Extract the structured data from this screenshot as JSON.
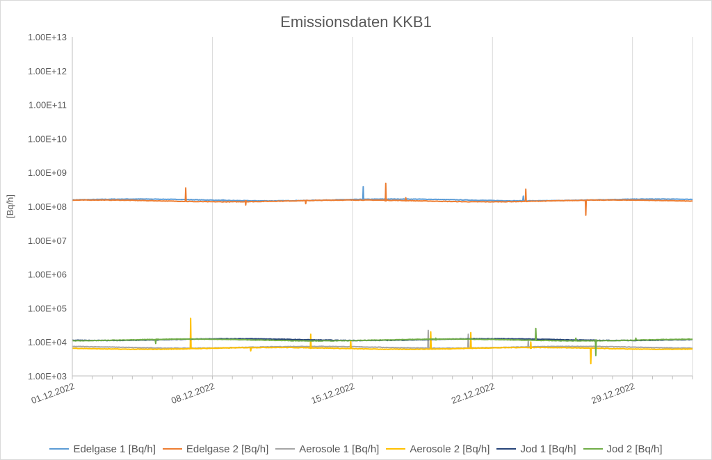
{
  "chart_data": {
    "type": "line",
    "title": "Emissionsdaten KKB1",
    "ylabel": "[Bq/h]",
    "xlabel": "",
    "y_scale": "log",
    "ylim": [
      1000,
      10000000000000
    ],
    "y_ticks": [
      "1.00E+03",
      "1.00E+04",
      "1.00E+05",
      "1.00E+06",
      "1.00E+07",
      "1.00E+08",
      "1.00E+09",
      "1.00E+10",
      "1.00E+11",
      "1.00E+12",
      "1.00E+13"
    ],
    "y_tick_values": [
      1000.0,
      10000.0,
      100000.0,
      1000000.0,
      10000000.0,
      100000000.0,
      1000000000.0,
      10000000000.0,
      100000000000.0,
      1000000000000.0,
      10000000000000.0
    ],
    "xlim": [
      "2022-12-01",
      "2023-01-01"
    ],
    "x_ticks": [
      "01.12.2022",
      "08.12.2022",
      "15.12.2022",
      "22.12.2022",
      "29.12.2022"
    ],
    "x_tick_dates": [
      "2022-12-01",
      "2022-12-08",
      "2022-12-15",
      "2022-12-22",
      "2022-12-29"
    ],
    "grid": "vertical",
    "legend_position": "bottom",
    "series": [
      {
        "name": "Edelgase 1 [Bq/h]",
        "color": "#5B9BD5",
        "baseline": 155000000,
        "spikes": [
          [
            "2022-12-15",
            380000000
          ],
          [
            "2022-12-23",
            200000000
          ],
          [
            "2022-12-08",
            140000000
          ]
        ]
      },
      {
        "name": "Edelgase 2 [Bq/h]",
        "color": "#ED7D31",
        "baseline": 145000000,
        "spikes": [
          [
            "2022-12-06",
            350000000
          ],
          [
            "2022-12-16",
            480000000
          ],
          [
            "2022-12-17",
            180000000
          ],
          [
            "2022-12-23",
            320000000
          ],
          [
            "2022-12-26",
            55000000
          ],
          [
            "2022-12-09",
            110000000
          ],
          [
            "2022-12-12",
            120000000
          ]
        ]
      },
      {
        "name": "Aerosole 1 [Bq/h]",
        "color": "#A5A5A5",
        "baseline": 7000,
        "spikes": [
          [
            "2022-12-18",
            22000
          ],
          [
            "2022-12-20",
            17000
          ],
          [
            "2022-12-23",
            11000
          ]
        ]
      },
      {
        "name": "Aerosole 2 [Bq/h]",
        "color": "#FFC000",
        "baseline": 6500,
        "spikes": [
          [
            "2022-12-06",
            25000
          ],
          [
            "2022-12-06",
            50000
          ],
          [
            "2022-12-12",
            17000
          ],
          [
            "2022-12-14",
            11000
          ],
          [
            "2022-12-18",
            20000
          ],
          [
            "2022-12-20",
            19000
          ],
          [
            "2022-12-23",
            10000
          ],
          [
            "2022-12-26",
            2300
          ],
          [
            "2022-12-09",
            5500
          ]
        ]
      },
      {
        "name": "Jod 1 [Bq/h]",
        "color": "#264478",
        "baseline": 11800,
        "spikes": []
      },
      {
        "name": "Jod 2 [Bq/h]",
        "color": "#70AD47",
        "baseline": 11500,
        "spikes": [
          [
            "2022-12-23",
            25000
          ],
          [
            "2022-12-25",
            13000
          ],
          [
            "2022-12-26",
            4000
          ],
          [
            "2022-12-18",
            13000
          ],
          [
            "2022-12-04",
            9000
          ],
          [
            "2022-12-28",
            13000
          ]
        ]
      }
    ]
  }
}
